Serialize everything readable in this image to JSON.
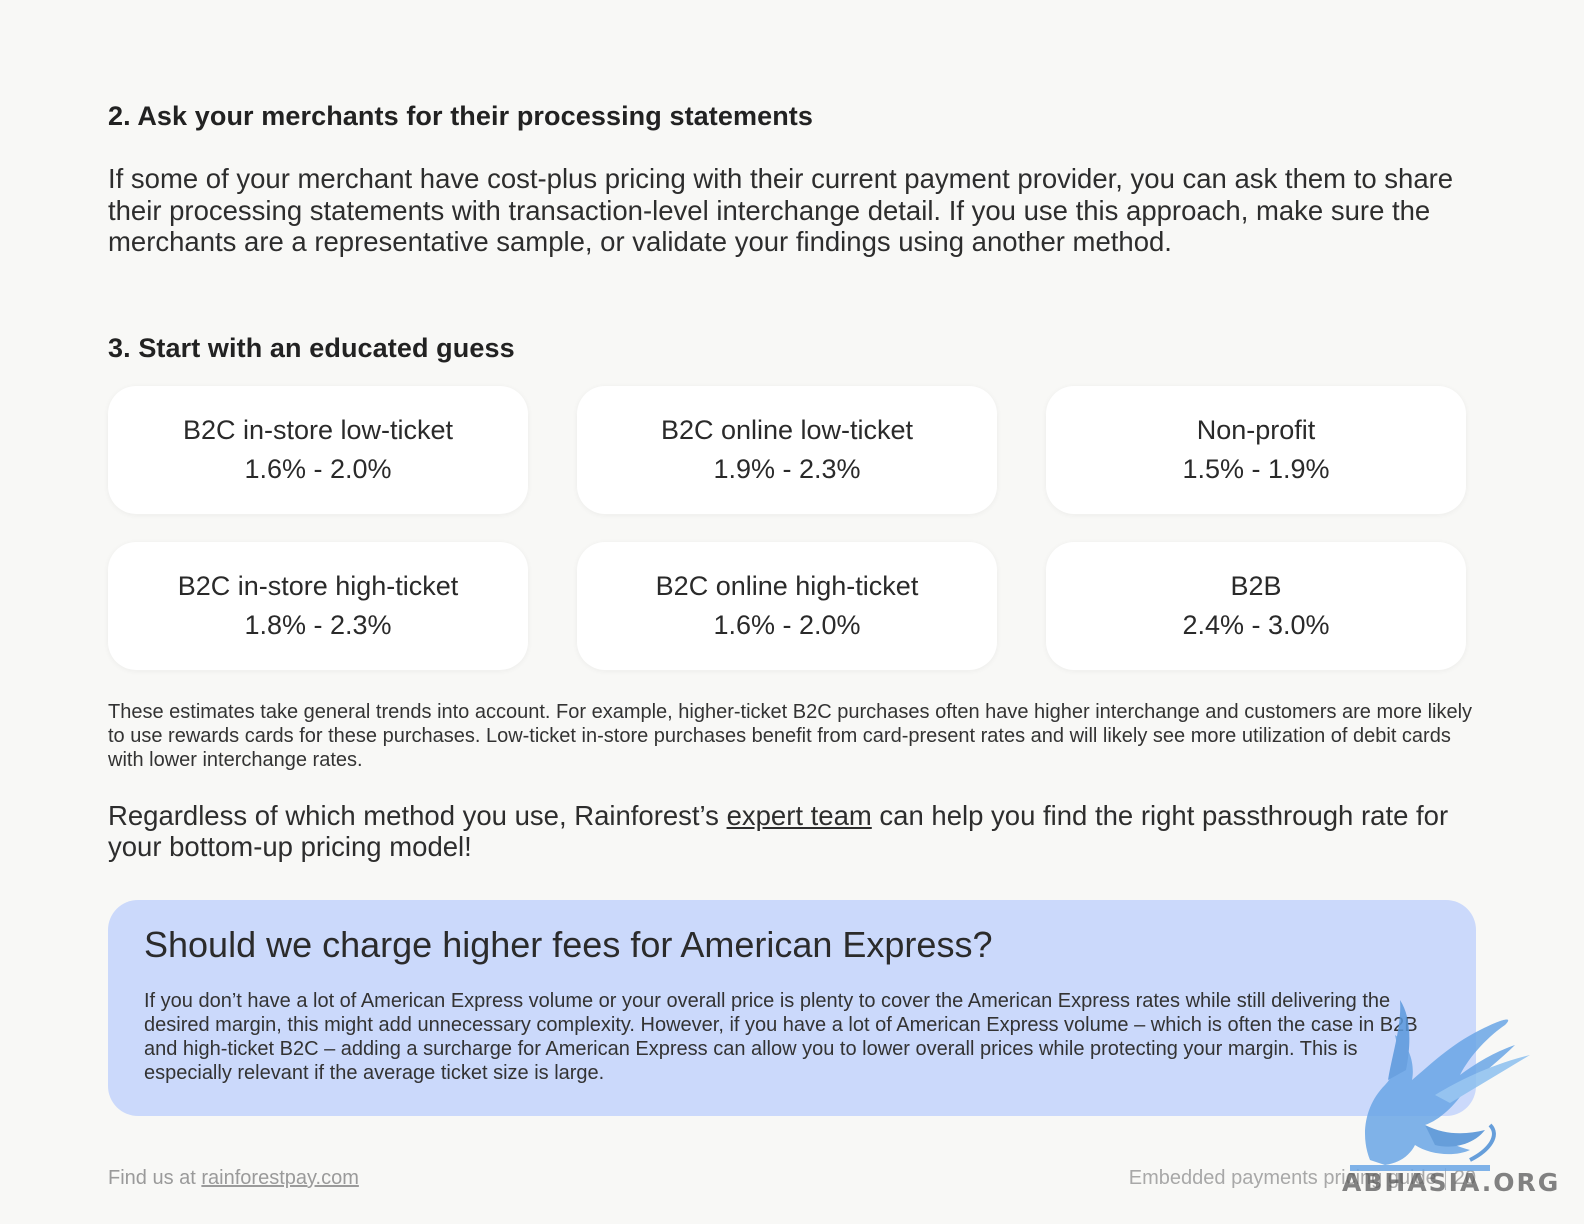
{
  "section2": {
    "heading": "2. Ask your merchants for their processing statements",
    "body": "If some of your merchant have cost-plus pricing with their current payment provider, you can ask them to share their processing statements with transaction-level interchange detail. If you use this approach, make sure the merchants are a representative sample, or validate your findings using another method."
  },
  "section3": {
    "heading": "3. Start with an educated guess",
    "cards": [
      {
        "label": "B2C in-store low-ticket",
        "range": "1.6% - 2.0%"
      },
      {
        "label": "B2C online low-ticket",
        "range": "1.9% - 2.3%"
      },
      {
        "label": "Non-profit",
        "range": "1.5% - 1.9%"
      },
      {
        "label": "B2C in-store high-ticket",
        "range": "1.8% - 2.3%"
      },
      {
        "label": "B2C online high-ticket",
        "range": "1.6% - 2.0%"
      },
      {
        "label": "B2B",
        "range": "2.4% - 3.0%"
      }
    ],
    "note": "These estimates take general trends into account. For example, higher-ticket B2C purchases often have higher interchange and customers are more likely to use rewards cards for these purchases. Low-ticket in-store purchases benefit from card-present rates and will likely see more utilization of debit cards with lower interchange rates."
  },
  "cta": {
    "before": "Regardless of which method you use, Rainforest’s ",
    "link": "expert team",
    "after": " can help you find the right passthrough rate for your bottom-up pricing model!"
  },
  "callout": {
    "title": "Should we charge higher fees for American Express?",
    "body": "If you don’t have a lot of American Express volume or your overall price is plenty to cover the American Express rates while still delivering the desired margin, this might add unnecessary complexity. However, if you have a lot of American Express volume  – which is often the case in B2B and high-ticket B2C – adding a surcharge for American Express can allow you to lower overall prices while protecting your margin. This is especially relevant if the average ticket size is large."
  },
  "footer": {
    "find_prefix": "Find us at ",
    "site": "rainforestpay.com",
    "guide": "Embedded payments pricing guide",
    "page": "20"
  },
  "watermark": {
    "text": "ABHASIA.ORG",
    "icon": "griffin-logo-icon"
  }
}
